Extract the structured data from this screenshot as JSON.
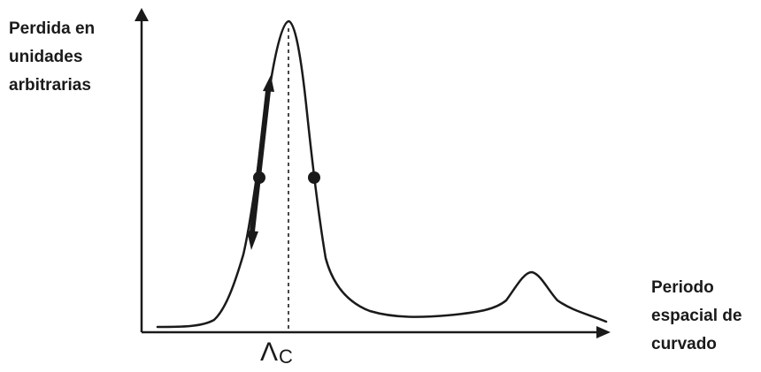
{
  "y_axis_label": [
    "Perdida en",
    "unidades",
    "arbitrarias"
  ],
  "x_axis_label": [
    "Periodo",
    "espacial de",
    "curvado"
  ],
  "marker_label": {
    "symbol": "Λ",
    "subscript": "C"
  },
  "colors": {
    "ink": "#1a1a1a",
    "background": "#ffffff"
  }
}
